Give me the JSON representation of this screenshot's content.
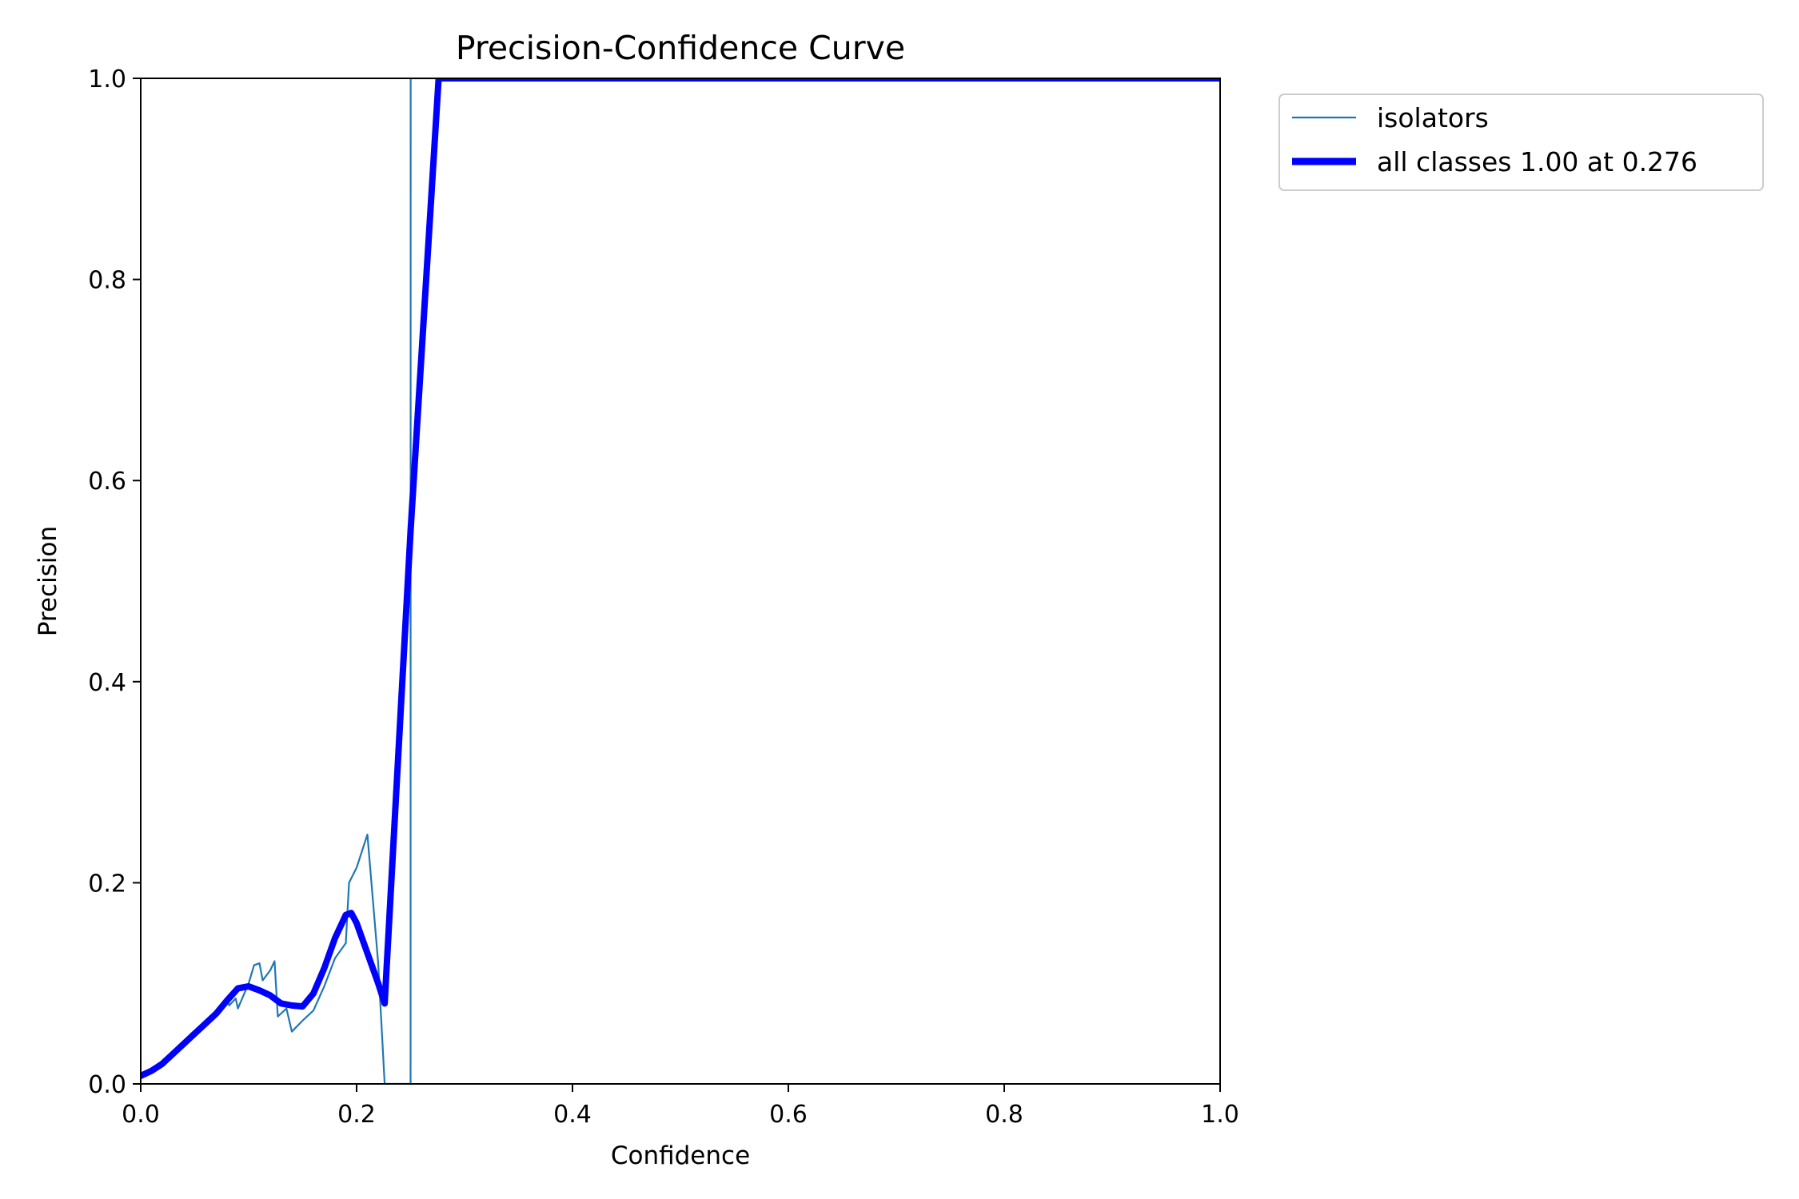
{
  "chart_data": {
    "type": "line",
    "title": "Precision-Confidence Curve",
    "xlabel": "Confidence",
    "ylabel": "Precision",
    "xlim": [
      0,
      1
    ],
    "ylim": [
      0,
      1
    ],
    "xticks": [
      "0.0",
      "0.2",
      "0.4",
      "0.6",
      "0.8",
      "1.0"
    ],
    "yticks": [
      "0.0",
      "0.2",
      "0.4",
      "0.6",
      "0.8",
      "1.0"
    ],
    "grid": false,
    "legend_position": "outside-top-right",
    "series": [
      {
        "name": "isolators",
        "color": "#1f77b4",
        "style": "thin",
        "x": [
          0.0,
          0.01,
          0.02,
          0.03,
          0.04,
          0.05,
          0.06,
          0.07,
          0.08,
          0.082,
          0.088,
          0.09,
          0.1,
          0.105,
          0.11,
          0.113,
          0.12,
          0.124,
          0.127,
          0.13,
          0.135,
          0.14,
          0.15,
          0.16,
          0.17,
          0.18,
          0.19,
          0.193,
          0.2,
          0.21,
          0.22,
          0.226,
          0.23,
          0.25,
          0.2501,
          0.251,
          0.26,
          0.3,
          0.4,
          0.5,
          0.6,
          0.7,
          0.8,
          0.9,
          1.0
        ],
        "y": [
          0.008,
          0.013,
          0.02,
          0.03,
          0.04,
          0.05,
          0.06,
          0.07,
          0.085,
          0.078,
          0.085,
          0.075,
          0.1,
          0.118,
          0.12,
          0.103,
          0.113,
          0.122,
          0.067,
          0.07,
          0.075,
          0.052,
          0.063,
          0.073,
          0.097,
          0.125,
          0.14,
          0.2,
          0.215,
          0.248,
          0.12,
          0.0,
          0.0,
          0.0,
          1.0,
          1.0,
          1.0,
          1.0,
          1.0,
          1.0,
          1.0,
          1.0,
          1.0,
          1.0,
          1.0
        ]
      },
      {
        "name": "all classes 1.00 at 0.276",
        "color": "#0000ff",
        "style": "thick",
        "x": [
          0.0,
          0.01,
          0.02,
          0.03,
          0.04,
          0.05,
          0.06,
          0.07,
          0.08,
          0.09,
          0.1,
          0.11,
          0.12,
          0.13,
          0.14,
          0.15,
          0.16,
          0.17,
          0.18,
          0.19,
          0.195,
          0.2,
          0.21,
          0.22,
          0.226,
          0.25,
          0.276,
          0.3,
          0.4,
          0.5,
          0.6,
          0.7,
          0.8,
          0.9,
          1.0
        ],
        "y": [
          0.008,
          0.013,
          0.02,
          0.03,
          0.04,
          0.05,
          0.06,
          0.07,
          0.083,
          0.095,
          0.097,
          0.093,
          0.088,
          0.08,
          0.078,
          0.077,
          0.09,
          0.115,
          0.145,
          0.168,
          0.17,
          0.16,
          0.13,
          0.1,
          0.08,
          0.55,
          1.0,
          1.0,
          1.0,
          1.0,
          1.0,
          1.0,
          1.0,
          1.0,
          1.0
        ]
      }
    ]
  }
}
